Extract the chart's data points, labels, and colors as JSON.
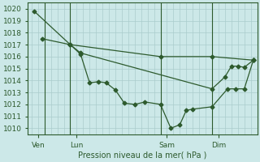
{
  "bg_color": "#cce8e8",
  "grid_color": "#aacccc",
  "line_color": "#2d5a2d",
  "xlabel": "Pression niveau de la mer( hPa )",
  "ylim": [
    1009.5,
    1020.5
  ],
  "xlim": [
    -0.3,
    17.5
  ],
  "yticks": [
    1010,
    1011,
    1012,
    1013,
    1014,
    1015,
    1016,
    1017,
    1018,
    1019,
    1020
  ],
  "xtick_labels": [
    "Ven",
    "Lun",
    "Sam",
    "Dim"
  ],
  "xtick_pos": [
    0.5,
    3.5,
    10.5,
    14.5
  ],
  "vline_pos": [
    1.0,
    3.0,
    10.0,
    14.0
  ],
  "line1": {
    "x": [
      0.2,
      3.0,
      10.0,
      14.0,
      17.2
    ],
    "y": [
      1019.8,
      1017.0,
      1016.0,
      1016.0,
      1015.7
    ]
  },
  "line2": {
    "x": [
      3.0,
      3.8,
      4.5,
      5.2,
      5.8,
      6.5,
      7.2,
      8.0,
      8.8,
      10.0,
      10.8,
      11.5,
      12.0,
      12.5,
      14.0,
      15.2,
      15.8,
      16.5,
      17.2
    ],
    "y": [
      1017.0,
      1016.2,
      1013.8,
      1013.9,
      1013.8,
      1013.2,
      1012.1,
      1012.0,
      1012.2,
      1012.0,
      1010.0,
      1010.3,
      1011.5,
      1011.6,
      1011.8,
      1013.3,
      1013.3,
      1013.3,
      1015.7
    ]
  },
  "line3": {
    "x": [
      0.8,
      3.0,
      3.8,
      14.0,
      15.0,
      15.5,
      16.0,
      16.5,
      17.2
    ],
    "y": [
      1017.5,
      1017.0,
      1016.3,
      1013.3,
      1014.3,
      1015.2,
      1015.2,
      1015.1,
      1015.7
    ]
  },
  "figsize": [
    3.2,
    2.0
  ],
  "dpi": 100
}
